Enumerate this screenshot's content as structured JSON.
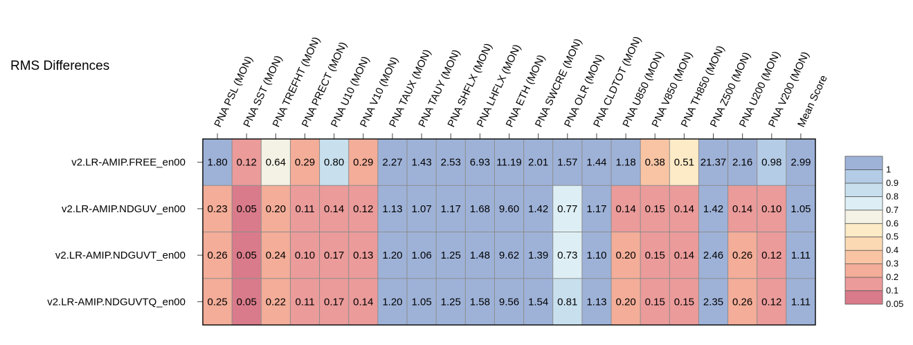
{
  "chart_data": {
    "type": "heatmap",
    "title": "RMS Differences",
    "columns": [
      "PNA PSL (MON)",
      "PNA SST (MON)",
      "PNA TREFHT (MON)",
      "PNA PRECT (MON)",
      "PNA U10 (MON)",
      "PNA V10 (MON)",
      "PNA TAUX (MON)",
      "PNA TAUY (MON)",
      "PNA SHFLX (MON)",
      "PNA LHFLX (MON)",
      "PNA ETH (MON)",
      "PNA SWCRE (MON)",
      "PNA OLR (MON)",
      "PNA CLDTOT (MON)",
      "PNA U850 (MON)",
      "PNA V850 (MON)",
      "PNA TH850 (MON)",
      "PNA Z500 (MON)",
      "PNA U200 (MON)",
      "PNA V200 (MON)",
      "Mean Score"
    ],
    "rows": [
      "v2.LR-AMIP.FREE_en00",
      "v2.LR-AMIP.NDGUV_en00",
      "v2.LR-AMIP.NDGUVT_en00",
      "v2.LR-AMIP.NDGUVTQ_en00"
    ],
    "values": [
      [
        "1.80",
        "0.12",
        "0.64",
        "0.29",
        "0.80",
        "0.29",
        "2.27",
        "1.43",
        "2.53",
        "6.93",
        "11.19",
        "2.01",
        "1.57",
        "1.44",
        "1.18",
        "0.38",
        "0.51",
        "21.37",
        "2.16",
        "0.98",
        "2.99"
      ],
      [
        "0.23",
        "0.05",
        "0.20",
        "0.11",
        "0.14",
        "0.12",
        "1.13",
        "1.07",
        "1.17",
        "1.68",
        "9.60",
        "1.42",
        "0.77",
        "1.17",
        "0.14",
        "0.15",
        "0.14",
        "1.42",
        "0.14",
        "0.10",
        "1.05"
      ],
      [
        "0.26",
        "0.05",
        "0.24",
        "0.10",
        "0.17",
        "0.13",
        "1.20",
        "1.06",
        "1.25",
        "1.48",
        "9.62",
        "1.39",
        "0.73",
        "1.10",
        "0.20",
        "0.15",
        "0.14",
        "2.46",
        "0.26",
        "0.12",
        "1.11"
      ],
      [
        "0.25",
        "0.05",
        "0.22",
        "0.11",
        "0.17",
        "0.14",
        "1.20",
        "1.05",
        "1.25",
        "1.58",
        "9.56",
        "1.54",
        "0.81",
        "1.13",
        "0.20",
        "0.15",
        "0.15",
        "2.35",
        "0.26",
        "0.12",
        "1.11"
      ]
    ],
    "colorbar": {
      "levels": [
        "0.05",
        "0.1",
        "0.2",
        "0.3",
        "0.4",
        "0.5",
        "0.6",
        "0.7",
        "0.8",
        "0.9",
        "1"
      ],
      "bin_colors": [
        "#d97b8a",
        "#ea9b9a",
        "#f3ad98",
        "#f8c4a4",
        "#fbd9b2",
        "#fcebc6",
        "#f3f2e4",
        "#ddeff4",
        "#c8e0ee",
        "#b4cce6",
        "#9eb2d8"
      ]
    }
  }
}
